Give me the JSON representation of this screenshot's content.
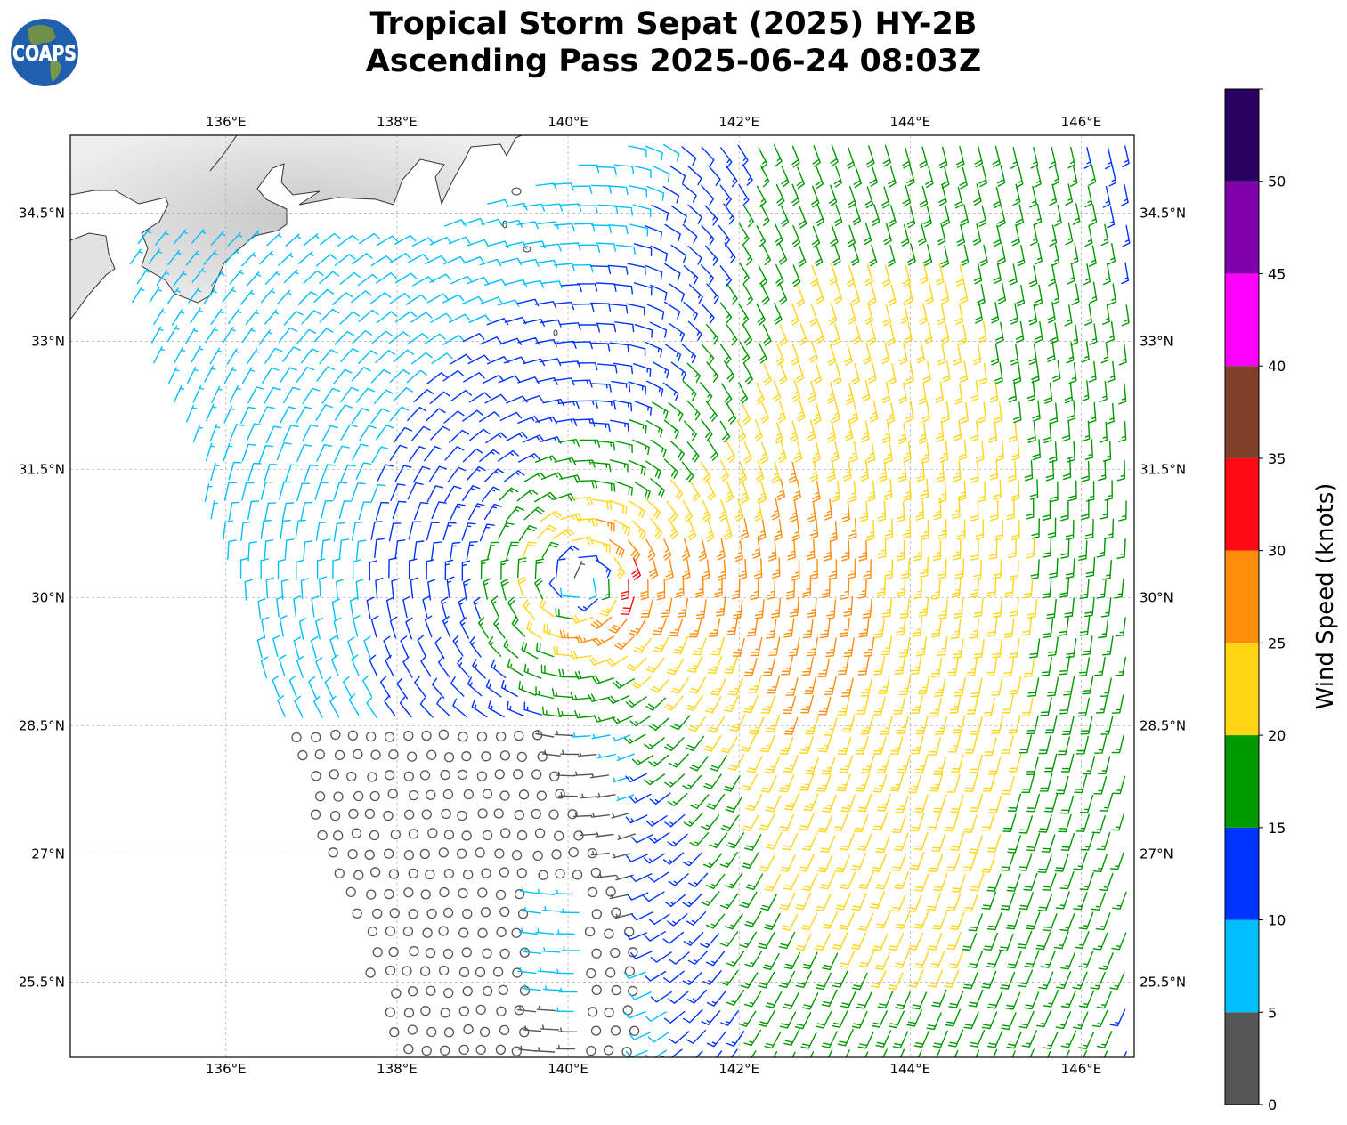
{
  "title": {
    "line1": "Tropical Storm Sepat (2025) HY-2B",
    "line2": "Ascending Pass 2025-06-24 08:03Z"
  },
  "logo": {
    "text": "COAPS"
  },
  "chart_data": {
    "type": "wind_barb_map",
    "lon_range": [
      134.18,
      146.62
    ],
    "lat_range": [
      24.62,
      35.41
    ],
    "lon_ticks": [
      136,
      138,
      140,
      142,
      144,
      146
    ],
    "lon_tick_labels": [
      "136°E",
      "138°E",
      "140°E",
      "142°E",
      "144°E",
      "146°E"
    ],
    "lat_ticks": [
      25.5,
      27,
      28.5,
      30,
      31.5,
      33,
      34.5
    ],
    "lat_tick_labels": [
      "25.5°N",
      "27°N",
      "28.5°N",
      "30°N",
      "31.5°N",
      "33°N",
      "34.5°N"
    ],
    "grid": true,
    "colorbar": {
      "label": "Wind Speed (knots)",
      "ticks": [
        "0",
        "5",
        "10",
        "15",
        "20",
        "25",
        "30",
        "35",
        "40",
        "45",
        "50"
      ],
      "range": [
        0,
        55
      ],
      "bins": [
        {
          "from": 0,
          "to": 5,
          "color": "#555555"
        },
        {
          "from": 5,
          "to": 10,
          "color": "#00BFFF"
        },
        {
          "from": 10,
          "to": 15,
          "color": "#0033FF"
        },
        {
          "from": 15,
          "to": 20,
          "color": "#009900"
        },
        {
          "from": 20,
          "to": 25,
          "color": "#FFD514"
        },
        {
          "from": 25,
          "to": 30,
          "color": "#FF8C0A"
        },
        {
          "from": 30,
          "to": 35,
          "color": "#FF0A14"
        },
        {
          "from": 35,
          "to": 40,
          "color": "#80402A"
        },
        {
          "from": 40,
          "to": 45,
          "color": "#FF00FF"
        },
        {
          "from": 45,
          "to": 50,
          "color": "#8000AA"
        },
        {
          "from": 50,
          "to": 55,
          "color": "#2A0060"
        }
      ]
    },
    "calm_marker": "circle"
  }
}
